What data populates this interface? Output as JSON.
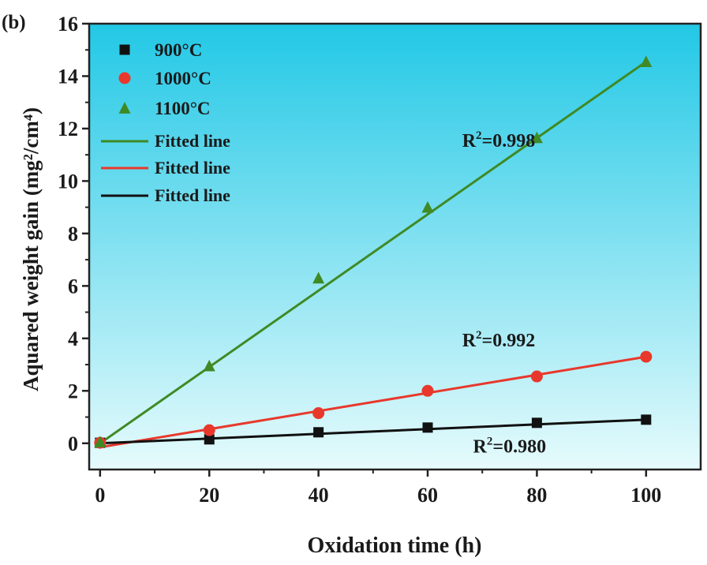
{
  "chart_data": {
    "type": "scatter",
    "panel_label": "(b)",
    "xlabel": "Oxidation time (h)",
    "ylabel": "Aquared weight gain (mg²/cm⁴)",
    "xlim": [
      -2,
      110
    ],
    "ylim": [
      -1,
      16
    ],
    "xticks": [
      0,
      20,
      40,
      60,
      80,
      100
    ],
    "yticks": [
      0,
      2,
      4,
      6,
      8,
      10,
      12,
      14,
      16
    ],
    "background_gradient": [
      "#22c8e6",
      "#e6fbfc"
    ],
    "series": [
      {
        "name": "900°C",
        "marker": "square",
        "color": "#111111",
        "x": [
          0,
          20,
          40,
          60,
          80,
          100
        ],
        "values": [
          0.02,
          0.15,
          0.42,
          0.6,
          0.78,
          0.9
        ]
      },
      {
        "name": "1000°C",
        "marker": "circle",
        "color": "#e8382c",
        "x": [
          0,
          20,
          40,
          60,
          80,
          100
        ],
        "values": [
          0.02,
          0.5,
          1.15,
          2.0,
          2.55,
          3.3
        ]
      },
      {
        "name": "1100°C",
        "marker": "triangle",
        "color": "#3f8a24",
        "x": [
          0,
          20,
          40,
          60,
          80,
          100
        ],
        "values": [
          0.05,
          2.95,
          6.3,
          9.0,
          11.65,
          14.55
        ]
      }
    ],
    "fitted_lines": [
      {
        "name": "Fitted line",
        "color": "#3f8a24",
        "x": [
          0,
          100
        ],
        "y": [
          0.0,
          14.55
        ]
      },
      {
        "name": "Fitted line",
        "color": "#e8382c",
        "x": [
          0,
          100
        ],
        "y": [
          -0.15,
          3.3
        ]
      },
      {
        "name": "Fitted line",
        "color": "#111111",
        "x": [
          0,
          100
        ],
        "y": [
          0.0,
          0.9
        ]
      }
    ],
    "annotations": [
      {
        "text": "R²=0.998",
        "x": 73,
        "y": 11.3
      },
      {
        "text": "R²=0.992",
        "x": 73,
        "y": 3.7
      },
      {
        "text": "R²=0.980",
        "x": 75,
        "y": -0.35
      }
    ],
    "legend_position": "top-left",
    "grid": false
  }
}
